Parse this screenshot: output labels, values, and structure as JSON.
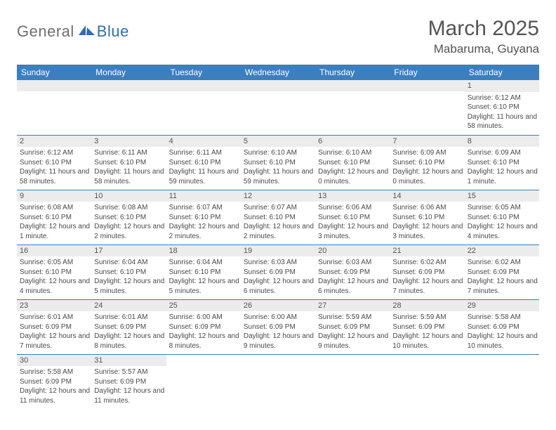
{
  "logo": {
    "gray": "General",
    "blue": "Blue"
  },
  "title": "March 2025",
  "location": "Mabaruma, Guyana",
  "colors": {
    "header_bg": "#3b7fbf",
    "header_text": "#ffffff",
    "daynum_bg": "#ececec",
    "row_border": "#3b7fbf",
    "logo_gray": "#6f6f6f",
    "logo_blue": "#2f6fa9",
    "body_text": "#4a4a4a"
  },
  "weekdays": [
    "Sunday",
    "Monday",
    "Tuesday",
    "Wednesday",
    "Thursday",
    "Friday",
    "Saturday"
  ],
  "weeks": [
    [
      {
        "empty": true
      },
      {
        "empty": true
      },
      {
        "empty": true
      },
      {
        "empty": true
      },
      {
        "empty": true
      },
      {
        "empty": true
      },
      {
        "day": "1",
        "sunrise": "Sunrise: 6:12 AM",
        "sunset": "Sunset: 6:10 PM",
        "daylight": "Daylight: 11 hours and 58 minutes."
      }
    ],
    [
      {
        "day": "2",
        "sunrise": "Sunrise: 6:12 AM",
        "sunset": "Sunset: 6:10 PM",
        "daylight": "Daylight: 11 hours and 58 minutes."
      },
      {
        "day": "3",
        "sunrise": "Sunrise: 6:11 AM",
        "sunset": "Sunset: 6:10 PM",
        "daylight": "Daylight: 11 hours and 58 minutes."
      },
      {
        "day": "4",
        "sunrise": "Sunrise: 6:11 AM",
        "sunset": "Sunset: 6:10 PM",
        "daylight": "Daylight: 11 hours and 59 minutes."
      },
      {
        "day": "5",
        "sunrise": "Sunrise: 6:10 AM",
        "sunset": "Sunset: 6:10 PM",
        "daylight": "Daylight: 11 hours and 59 minutes."
      },
      {
        "day": "6",
        "sunrise": "Sunrise: 6:10 AM",
        "sunset": "Sunset: 6:10 PM",
        "daylight": "Daylight: 12 hours and 0 minutes."
      },
      {
        "day": "7",
        "sunrise": "Sunrise: 6:09 AM",
        "sunset": "Sunset: 6:10 PM",
        "daylight": "Daylight: 12 hours and 0 minutes."
      },
      {
        "day": "8",
        "sunrise": "Sunrise: 6:09 AM",
        "sunset": "Sunset: 6:10 PM",
        "daylight": "Daylight: 12 hours and 1 minute."
      }
    ],
    [
      {
        "day": "9",
        "sunrise": "Sunrise: 6:08 AM",
        "sunset": "Sunset: 6:10 PM",
        "daylight": "Daylight: 12 hours and 1 minute."
      },
      {
        "day": "10",
        "sunrise": "Sunrise: 6:08 AM",
        "sunset": "Sunset: 6:10 PM",
        "daylight": "Daylight: 12 hours and 2 minutes."
      },
      {
        "day": "11",
        "sunrise": "Sunrise: 6:07 AM",
        "sunset": "Sunset: 6:10 PM",
        "daylight": "Daylight: 12 hours and 2 minutes."
      },
      {
        "day": "12",
        "sunrise": "Sunrise: 6:07 AM",
        "sunset": "Sunset: 6:10 PM",
        "daylight": "Daylight: 12 hours and 2 minutes."
      },
      {
        "day": "13",
        "sunrise": "Sunrise: 6:06 AM",
        "sunset": "Sunset: 6:10 PM",
        "daylight": "Daylight: 12 hours and 3 minutes."
      },
      {
        "day": "14",
        "sunrise": "Sunrise: 6:06 AM",
        "sunset": "Sunset: 6:10 PM",
        "daylight": "Daylight: 12 hours and 3 minutes."
      },
      {
        "day": "15",
        "sunrise": "Sunrise: 6:05 AM",
        "sunset": "Sunset: 6:10 PM",
        "daylight": "Daylight: 12 hours and 4 minutes."
      }
    ],
    [
      {
        "day": "16",
        "sunrise": "Sunrise: 6:05 AM",
        "sunset": "Sunset: 6:10 PM",
        "daylight": "Daylight: 12 hours and 4 minutes."
      },
      {
        "day": "17",
        "sunrise": "Sunrise: 6:04 AM",
        "sunset": "Sunset: 6:10 PM",
        "daylight": "Daylight: 12 hours and 5 minutes."
      },
      {
        "day": "18",
        "sunrise": "Sunrise: 6:04 AM",
        "sunset": "Sunset: 6:10 PM",
        "daylight": "Daylight: 12 hours and 5 minutes."
      },
      {
        "day": "19",
        "sunrise": "Sunrise: 6:03 AM",
        "sunset": "Sunset: 6:09 PM",
        "daylight": "Daylight: 12 hours and 6 minutes."
      },
      {
        "day": "20",
        "sunrise": "Sunrise: 6:03 AM",
        "sunset": "Sunset: 6:09 PM",
        "daylight": "Daylight: 12 hours and 6 minutes."
      },
      {
        "day": "21",
        "sunrise": "Sunrise: 6:02 AM",
        "sunset": "Sunset: 6:09 PM",
        "daylight": "Daylight: 12 hours and 7 minutes."
      },
      {
        "day": "22",
        "sunrise": "Sunrise: 6:02 AM",
        "sunset": "Sunset: 6:09 PM",
        "daylight": "Daylight: 12 hours and 7 minutes."
      }
    ],
    [
      {
        "day": "23",
        "sunrise": "Sunrise: 6:01 AM",
        "sunset": "Sunset: 6:09 PM",
        "daylight": "Daylight: 12 hours and 7 minutes."
      },
      {
        "day": "24",
        "sunrise": "Sunrise: 6:01 AM",
        "sunset": "Sunset: 6:09 PM",
        "daylight": "Daylight: 12 hours and 8 minutes."
      },
      {
        "day": "25",
        "sunrise": "Sunrise: 6:00 AM",
        "sunset": "Sunset: 6:09 PM",
        "daylight": "Daylight: 12 hours and 8 minutes."
      },
      {
        "day": "26",
        "sunrise": "Sunrise: 6:00 AM",
        "sunset": "Sunset: 6:09 PM",
        "daylight": "Daylight: 12 hours and 9 minutes."
      },
      {
        "day": "27",
        "sunrise": "Sunrise: 5:59 AM",
        "sunset": "Sunset: 6:09 PM",
        "daylight": "Daylight: 12 hours and 9 minutes."
      },
      {
        "day": "28",
        "sunrise": "Sunrise: 5:59 AM",
        "sunset": "Sunset: 6:09 PM",
        "daylight": "Daylight: 12 hours and 10 minutes."
      },
      {
        "day": "29",
        "sunrise": "Sunrise: 5:58 AM",
        "sunset": "Sunset: 6:09 PM",
        "daylight": "Daylight: 12 hours and 10 minutes."
      }
    ],
    [
      {
        "day": "30",
        "sunrise": "Sunrise: 5:58 AM",
        "sunset": "Sunset: 6:09 PM",
        "daylight": "Daylight: 12 hours and 11 minutes."
      },
      {
        "day": "31",
        "sunrise": "Sunrise: 5:57 AM",
        "sunset": "Sunset: 6:09 PM",
        "daylight": "Daylight: 12 hours and 11 minutes."
      },
      {
        "empty": true
      },
      {
        "empty": true
      },
      {
        "empty": true
      },
      {
        "empty": true
      },
      {
        "empty": true
      }
    ]
  ]
}
